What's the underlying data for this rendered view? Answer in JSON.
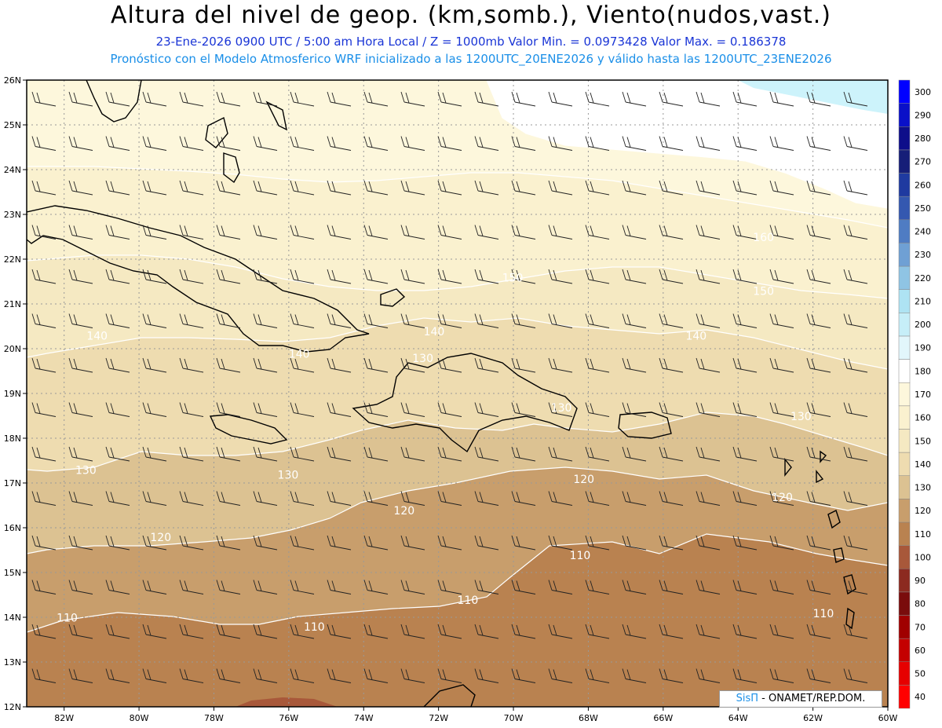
{
  "header": {
    "title": "Altura del nivel de geop. (km,somb.), Viento(nudos,vast.)",
    "subtitle": "23-Ene-2026  0900 UTC / 5:00 am Hora Local / Z = 1000mb  Valor Min. = 0.0973428  Valor Max. = 0.186378",
    "model_line": "Pronóstico con el Modelo Atmosferico WRF inicializado a las 1200UTC_20ENE2026 y válido hasta las  1200UTC_23ENE2026"
  },
  "credit": {
    "brand": "SisΠ",
    "text": " - ONAMET/REP.DOM."
  },
  "map": {
    "lon_range": [
      -83,
      -60
    ],
    "lat_range": [
      12,
      26
    ],
    "lon_ticks": [
      "82W",
      "80W",
      "78W",
      "76W",
      "74W",
      "72W",
      "70W",
      "68W",
      "66W",
      "64W",
      "62W",
      "60W"
    ],
    "lat_ticks": [
      "12N",
      "13N",
      "14N",
      "15N",
      "16N",
      "17N",
      "18N",
      "19N",
      "20N",
      "21N",
      "22N",
      "23N",
      "24N",
      "25N",
      "26N"
    ],
    "colorbar_labels": [
      "40",
      "50",
      "60",
      "70",
      "80",
      "90",
      "100",
      "110",
      "120",
      "130",
      "140",
      "150",
      "160",
      "170",
      "180",
      "190",
      "200",
      "210",
      "220",
      "230",
      "240",
      "250",
      "260",
      "270",
      "280",
      "290",
      "300"
    ],
    "colorbar_colors": [
      "#ff0000",
      "#e60000",
      "#c40000",
      "#a00000",
      "#7a0c0c",
      "#8c2a20",
      "#a8583a",
      "#b98250",
      "#c89e6c",
      "#dcc292",
      "#eedcb0",
      "#f5e9c2",
      "#faf1cf",
      "#fdf7dc",
      "#ffffff",
      "#e2f6fb",
      "#c6eef8",
      "#aee3f3",
      "#8fc4e4",
      "#6fa0d4",
      "#4f7cc3",
      "#3458b0",
      "#1f3aa0",
      "#161e78",
      "#0e0e8a",
      "#0a10c8",
      "#0000ff"
    ],
    "contour_labels": [
      {
        "text": "110",
        "lon": -82.2,
        "lat": 13.9
      },
      {
        "text": "110",
        "lon": -75.6,
        "lat": 13.7
      },
      {
        "text": "110",
        "lon": -71.5,
        "lat": 14.3
      },
      {
        "text": "110",
        "lon": -68.5,
        "lat": 15.3
      },
      {
        "text": "110",
        "lon": -62,
        "lat": 14.0
      },
      {
        "text": "120",
        "lon": -79.7,
        "lat": 15.7
      },
      {
        "text": "120",
        "lon": -73.2,
        "lat": 16.3
      },
      {
        "text": "120",
        "lon": -68.4,
        "lat": 17.0
      },
      {
        "text": "120",
        "lon": -63.1,
        "lat": 16.6
      },
      {
        "text": "130",
        "lon": -81.7,
        "lat": 17.2
      },
      {
        "text": "130",
        "lon": -76.3,
        "lat": 17.1
      },
      {
        "text": "130",
        "lon": -69.0,
        "lat": 18.6
      },
      {
        "text": "130",
        "lon": -62.6,
        "lat": 18.4
      },
      {
        "text": "130",
        "lon": -72.7,
        "lat": 19.7
      },
      {
        "text": "140",
        "lon": -81.4,
        "lat": 20.2
      },
      {
        "text": "140",
        "lon": -76.0,
        "lat": 19.8
      },
      {
        "text": "140",
        "lon": -72.4,
        "lat": 20.3
      },
      {
        "text": "140",
        "lon": -65.4,
        "lat": 20.2
      },
      {
        "text": "150",
        "lon": -70.3,
        "lat": 21.5
      },
      {
        "text": "150",
        "lon": -63.6,
        "lat": 21.2
      },
      {
        "text": "160",
        "lon": -63.6,
        "lat": 22.4
      }
    ]
  }
}
